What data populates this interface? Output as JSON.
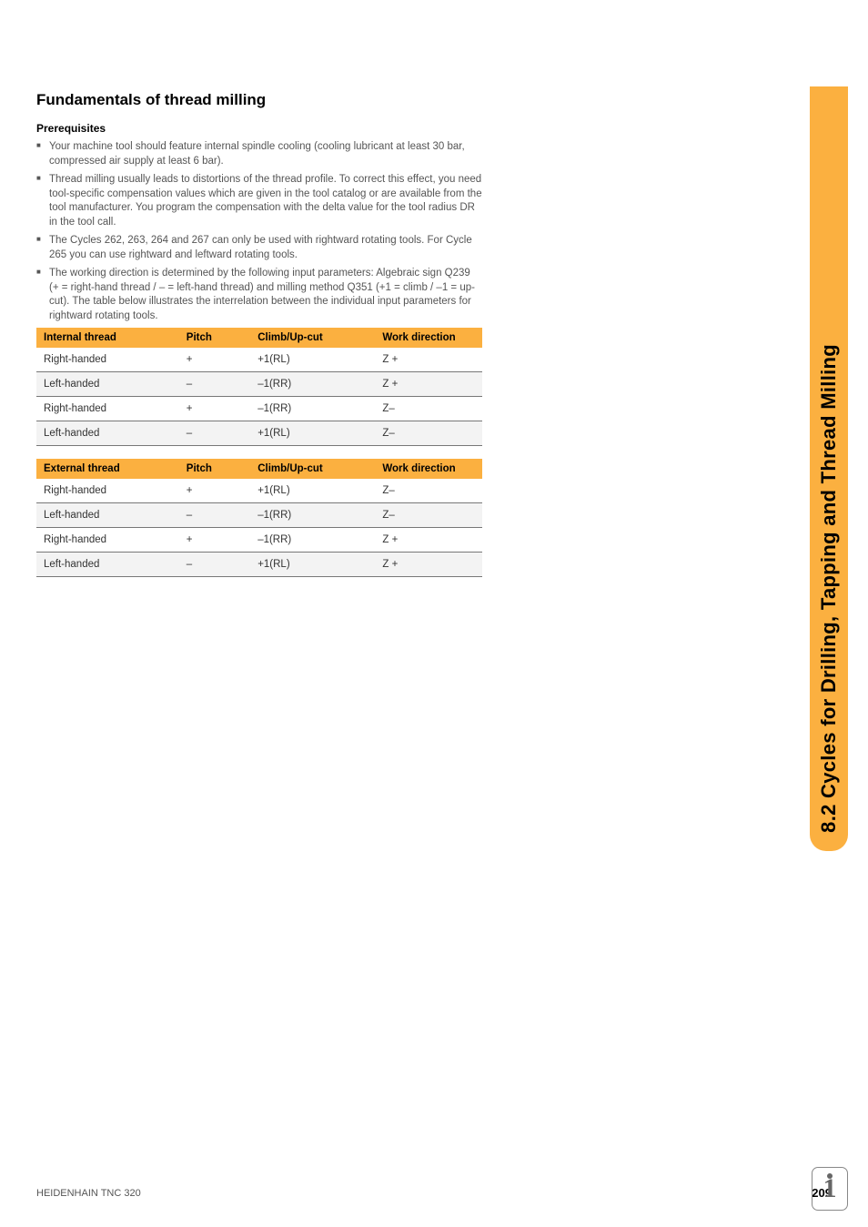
{
  "sideTab": "8.2 Cycles for Drilling, Tapping and Thread Milling",
  "heading": "Fundamentals of thread milling",
  "subheading": "Prerequisites",
  "bullets": [
    "Your machine tool should feature internal spindle cooling (cooling lubricant at least 30 bar, compressed air supply at least 6 bar).",
    "Thread milling usually leads to distortions of the thread profile. To correct this effect, you need tool-specific compensation values which are given in the tool catalog or are available from the tool manufacturer. You program the compensation with the delta value for the tool radius DR in the tool call.",
    "The Cycles 262, 263, 264 and 267 can only be used with rightward rotating tools. For Cycle 265 you can use rightward and leftward rotating tools.",
    "The working direction is determined by the following input parameters: Algebraic sign Q239 (+ = right-hand thread / – = left-hand thread) and milling method Q351 (+1 = climb / –1 = up-cut). The table below illustrates the interrelation between the individual input parameters for rightward rotating tools."
  ],
  "tableInternal": {
    "headers": [
      "Internal thread",
      "Pitch",
      "Climb/Up-cut",
      "Work direction"
    ],
    "rows": [
      [
        "Right-handed",
        "+",
        "+1(RL)",
        "Z +"
      ],
      [
        "Left-handed",
        "–",
        "–1(RR)",
        "Z +"
      ],
      [
        "Right-handed",
        "+",
        "–1(RR)",
        "Z–"
      ],
      [
        "Left-handed",
        "–",
        "+1(RL)",
        "Z–"
      ]
    ]
  },
  "tableExternal": {
    "headers": [
      "External thread",
      "Pitch",
      "Climb/Up-cut",
      "Work direction"
    ],
    "rows": [
      [
        "Right-handed",
        "+",
        "+1(RL)",
        "Z–"
      ],
      [
        "Left-handed",
        "–",
        "–1(RR)",
        "Z–"
      ],
      [
        "Right-handed",
        "+",
        "–1(RR)",
        "Z +"
      ],
      [
        "Left-handed",
        "–",
        "+1(RL)",
        "Z +"
      ]
    ]
  },
  "footer": {
    "left": "HEIDENHAIN TNC 320",
    "page": "209"
  },
  "colors": {
    "accent": "#fbb040",
    "text_secondary": "#555555",
    "border": "#777777"
  }
}
